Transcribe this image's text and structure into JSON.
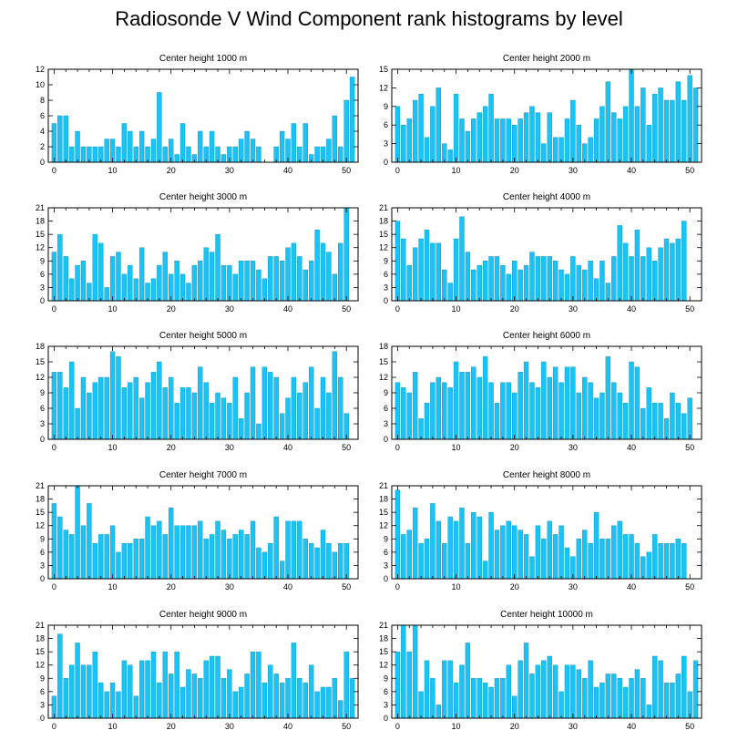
{
  "title": "Radiosonde V Wind Component rank histograms by level",
  "colors": {
    "bar": "#19C3F5",
    "bar_edge": "#0C8FB7",
    "axis": "#000000",
    "background": "#ffffff"
  },
  "chart_data": [
    {
      "type": "bar",
      "title": "Center height 1000 m",
      "x": [
        0,
        1,
        2,
        3,
        4,
        5,
        6,
        7,
        8,
        9,
        10,
        11,
        12,
        13,
        14,
        15,
        16,
        17,
        18,
        19,
        20,
        21,
        22,
        23,
        24,
        25,
        26,
        27,
        28,
        29,
        30,
        31,
        32,
        33,
        34,
        35,
        36,
        37,
        38,
        39,
        40,
        41,
        42,
        43,
        44,
        45,
        46,
        47,
        48,
        49,
        50,
        51
      ],
      "values": [
        5,
        6,
        6,
        2,
        4,
        2,
        2,
        2,
        2,
        3,
        3,
        2,
        5,
        4,
        2,
        4,
        2,
        3,
        9,
        2,
        3,
        1,
        5,
        2,
        1,
        4,
        2,
        4,
        2,
        1,
        2,
        2,
        3,
        4,
        3,
        2,
        0,
        0,
        2,
        4,
        3,
        5,
        2,
        5,
        1,
        2,
        2,
        3,
        6,
        2,
        8,
        11
      ],
      "xlim": [
        -1,
        52
      ],
      "ylim": [
        0,
        12
      ],
      "xticks": [
        0,
        10,
        20,
        30,
        40,
        50
      ],
      "yticks": [
        0,
        2,
        4,
        6,
        8,
        10,
        12
      ]
    },
    {
      "type": "bar",
      "title": "Center height 2000 m",
      "x": [
        0,
        1,
        2,
        3,
        4,
        5,
        6,
        7,
        8,
        9,
        10,
        11,
        12,
        13,
        14,
        15,
        16,
        17,
        18,
        19,
        20,
        21,
        22,
        23,
        24,
        25,
        26,
        27,
        28,
        29,
        30,
        31,
        32,
        33,
        34,
        35,
        36,
        37,
        38,
        39,
        40,
        41,
        42,
        43,
        44,
        45,
        46,
        47,
        48,
        49,
        50,
        51
      ],
      "values": [
        9,
        6,
        7,
        10,
        11,
        4,
        9,
        12,
        3,
        2,
        11,
        7,
        5,
        7,
        8,
        9,
        11,
        7,
        7,
        7,
        6,
        7,
        8,
        9,
        8,
        3,
        8,
        4,
        4,
        7,
        10,
        6,
        3,
        4,
        7,
        9,
        13,
        8,
        7,
        9,
        15,
        9,
        12,
        6,
        11,
        12,
        10,
        10,
        13,
        10,
        14,
        12
      ],
      "xlim": [
        -1,
        52
      ],
      "ylim": [
        0,
        15
      ],
      "xticks": [
        0,
        10,
        20,
        30,
        40,
        50
      ],
      "yticks": [
        0,
        3,
        6,
        9,
        12,
        15
      ]
    },
    {
      "type": "bar",
      "title": "Center height 3000 m",
      "x": [
        0,
        1,
        2,
        3,
        4,
        5,
        6,
        7,
        8,
        9,
        10,
        11,
        12,
        13,
        14,
        15,
        16,
        17,
        18,
        19,
        20,
        21,
        22,
        23,
        24,
        25,
        26,
        27,
        28,
        29,
        30,
        31,
        32,
        33,
        34,
        35,
        36,
        37,
        38,
        39,
        40,
        41,
        42,
        43,
        44,
        45,
        46,
        47,
        48,
        49,
        50,
        51
      ],
      "values": [
        11,
        15,
        10,
        5,
        8,
        9,
        4,
        15,
        13,
        3,
        10,
        11,
        6,
        8,
        5,
        12,
        4,
        5,
        8,
        11,
        6,
        9,
        6,
        4,
        8,
        9,
        12,
        11,
        15,
        8,
        8,
        6,
        9,
        9,
        9,
        7,
        5,
        10,
        10,
        9,
        12,
        13,
        10,
        7,
        9,
        16,
        13,
        11,
        6,
        13,
        21,
        0
      ],
      "xlim": [
        -1,
        52
      ],
      "ylim": [
        0,
        21
      ],
      "xticks": [
        0,
        10,
        20,
        30,
        40,
        50
      ],
      "yticks": [
        0,
        3,
        6,
        9,
        12,
        15,
        18,
        21
      ]
    },
    {
      "type": "bar",
      "title": "Center height 4000 m",
      "x": [
        0,
        1,
        2,
        3,
        4,
        5,
        6,
        7,
        8,
        9,
        10,
        11,
        12,
        13,
        14,
        15,
        16,
        17,
        18,
        19,
        20,
        21,
        22,
        23,
        24,
        25,
        26,
        27,
        28,
        29,
        30,
        31,
        32,
        33,
        34,
        35,
        36,
        37,
        38,
        39,
        40,
        41,
        42,
        43,
        44,
        45,
        46,
        47,
        48,
        49,
        50,
        51
      ],
      "values": [
        18,
        14,
        8,
        12,
        14,
        16,
        13,
        13,
        7,
        4,
        14,
        19,
        11,
        7,
        8,
        9,
        10,
        10,
        8,
        6,
        9,
        7,
        8,
        11,
        10,
        10,
        10,
        9,
        7,
        6,
        10,
        8,
        7,
        9,
        5,
        9,
        4,
        10,
        17,
        13,
        10,
        16,
        10,
        12,
        9,
        12,
        14,
        13,
        14,
        18,
        0,
        0
      ],
      "xlim": [
        -1,
        52
      ],
      "ylim": [
        0,
        21
      ],
      "xticks": [
        0,
        10,
        20,
        30,
        40,
        50
      ],
      "yticks": [
        0,
        3,
        6,
        9,
        12,
        15,
        18,
        21
      ]
    },
    {
      "type": "bar",
      "title": "Center height 5000 m",
      "x": [
        0,
        1,
        2,
        3,
        4,
        5,
        6,
        7,
        8,
        9,
        10,
        11,
        12,
        13,
        14,
        15,
        16,
        17,
        18,
        19,
        20,
        21,
        22,
        23,
        24,
        25,
        26,
        27,
        28,
        29,
        30,
        31,
        32,
        33,
        34,
        35,
        36,
        37,
        38,
        39,
        40,
        41,
        42,
        43,
        44,
        45,
        46,
        47,
        48,
        49,
        50,
        51
      ],
      "values": [
        13,
        13,
        10,
        15,
        6,
        12,
        9,
        11,
        12,
        12,
        17,
        16,
        10,
        11,
        12,
        8,
        11,
        13,
        15,
        10,
        12,
        7,
        10,
        10,
        9,
        14,
        11,
        7,
        9,
        8,
        7,
        12,
        4,
        9,
        14,
        3,
        14,
        13,
        12,
        5,
        8,
        12,
        9,
        11,
        14,
        6,
        12,
        9,
        17,
        12,
        5,
        0
      ],
      "xlim": [
        -1,
        52
      ],
      "ylim": [
        0,
        18
      ],
      "xticks": [
        0,
        10,
        20,
        30,
        40,
        50
      ],
      "yticks": [
        0,
        3,
        6,
        9,
        12,
        15,
        18
      ]
    },
    {
      "type": "bar",
      "title": "Center height 6000 m",
      "x": [
        0,
        1,
        2,
        3,
        4,
        5,
        6,
        7,
        8,
        9,
        10,
        11,
        12,
        13,
        14,
        15,
        16,
        17,
        18,
        19,
        20,
        21,
        22,
        23,
        24,
        25,
        26,
        27,
        28,
        29,
        30,
        31,
        32,
        33,
        34,
        35,
        36,
        37,
        38,
        39,
        40,
        41,
        42,
        43,
        44,
        45,
        46,
        47,
        48,
        49,
        50,
        51
      ],
      "values": [
        11,
        10,
        9,
        13,
        4,
        7,
        11,
        12,
        11,
        10,
        15,
        13,
        13,
        14,
        12,
        16,
        11,
        7,
        11,
        11,
        9,
        13,
        15,
        11,
        10,
        15,
        12,
        14,
        11,
        14,
        14,
        9,
        12,
        11,
        8,
        9,
        16,
        11,
        9,
        7,
        15,
        14,
        6,
        10,
        7,
        7,
        4,
        9,
        7,
        5,
        8,
        0
      ],
      "xlim": [
        -1,
        52
      ],
      "ylim": [
        0,
        18
      ],
      "xticks": [
        0,
        10,
        20,
        30,
        40,
        50
      ],
      "yticks": [
        0,
        3,
        6,
        9,
        12,
        15,
        18
      ]
    },
    {
      "type": "bar",
      "title": "Center height 7000 m",
      "x": [
        0,
        1,
        2,
        3,
        4,
        5,
        6,
        7,
        8,
        9,
        10,
        11,
        12,
        13,
        14,
        15,
        16,
        17,
        18,
        19,
        20,
        21,
        22,
        23,
        24,
        25,
        26,
        27,
        28,
        29,
        30,
        31,
        32,
        33,
        34,
        35,
        36,
        37,
        38,
        39,
        40,
        41,
        42,
        43,
        44,
        45,
        46,
        47,
        48,
        49,
        50,
        51
      ],
      "values": [
        17,
        14,
        11,
        10,
        21,
        12,
        17,
        8,
        10,
        10,
        12,
        6,
        8,
        8,
        9,
        9,
        14,
        12,
        13,
        10,
        16,
        12,
        12,
        12,
        12,
        13,
        9,
        10,
        13,
        11,
        9,
        10,
        11,
        10,
        13,
        7,
        6,
        8,
        14,
        4,
        13,
        13,
        13,
        9,
        8,
        7,
        11,
        8,
        6,
        8,
        8,
        0
      ],
      "xlim": [
        -1,
        52
      ],
      "ylim": [
        0,
        21
      ],
      "xticks": [
        0,
        10,
        20,
        30,
        40,
        50
      ],
      "yticks": [
        0,
        3,
        6,
        9,
        12,
        15,
        18,
        21
      ]
    },
    {
      "type": "bar",
      "title": "Center height 8000 m",
      "x": [
        0,
        1,
        2,
        3,
        4,
        5,
        6,
        7,
        8,
        9,
        10,
        11,
        12,
        13,
        14,
        15,
        16,
        17,
        18,
        19,
        20,
        21,
        22,
        23,
        24,
        25,
        26,
        27,
        28,
        29,
        30,
        31,
        32,
        33,
        34,
        35,
        36,
        37,
        38,
        39,
        40,
        41,
        42,
        43,
        44,
        45,
        46,
        47,
        48,
        49,
        50,
        51
      ],
      "values": [
        20,
        10,
        11,
        16,
        8,
        9,
        17,
        13,
        8,
        14,
        13,
        16,
        8,
        15,
        14,
        4,
        15,
        11,
        12,
        13,
        12,
        11,
        10,
        5,
        12,
        9,
        13,
        10,
        12,
        7,
        5,
        9,
        11,
        8,
        15,
        9,
        9,
        12,
        13,
        10,
        10,
        8,
        5,
        6,
        10,
        8,
        8,
        8,
        9,
        8,
        0,
        0
      ],
      "xlim": [
        -1,
        52
      ],
      "ylim": [
        0,
        21
      ],
      "xticks": [
        0,
        10,
        20,
        30,
        40,
        50
      ],
      "yticks": [
        0,
        3,
        6,
        9,
        12,
        15,
        18,
        21
      ]
    },
    {
      "type": "bar",
      "title": "Center height 9000 m",
      "x": [
        0,
        1,
        2,
        3,
        4,
        5,
        6,
        7,
        8,
        9,
        10,
        11,
        12,
        13,
        14,
        15,
        16,
        17,
        18,
        19,
        20,
        21,
        22,
        23,
        24,
        25,
        26,
        27,
        28,
        29,
        30,
        31,
        32,
        33,
        34,
        35,
        36,
        37,
        38,
        39,
        40,
        41,
        42,
        43,
        44,
        45,
        46,
        47,
        48,
        49,
        50,
        51
      ],
      "values": [
        5,
        19,
        9,
        12,
        17,
        12,
        12,
        15,
        8,
        6,
        8,
        6,
        13,
        12,
        5,
        13,
        13,
        15,
        8,
        15,
        10,
        15,
        7,
        11,
        10,
        9,
        13,
        14,
        14,
        9,
        11,
        6,
        7,
        10,
        15,
        15,
        8,
        12,
        10,
        8,
        9,
        17,
        9,
        8,
        12,
        6,
        7,
        7,
        9,
        4,
        15,
        9
      ],
      "xlim": [
        -1,
        52
      ],
      "ylim": [
        0,
        21
      ],
      "xticks": [
        0,
        10,
        20,
        30,
        40,
        50
      ],
      "yticks": [
        0,
        3,
        6,
        9,
        12,
        15,
        18,
        21
      ]
    },
    {
      "type": "bar",
      "title": "Center height 10000 m",
      "x": [
        0,
        1,
        2,
        3,
        4,
        5,
        6,
        7,
        8,
        9,
        10,
        11,
        12,
        13,
        14,
        15,
        16,
        17,
        18,
        19,
        20,
        21,
        22,
        23,
        24,
        25,
        26,
        27,
        28,
        29,
        30,
        31,
        32,
        33,
        34,
        35,
        36,
        37,
        38,
        39,
        40,
        41,
        42,
        43,
        44,
        45,
        46,
        47,
        48,
        49,
        50,
        51
      ],
      "values": [
        15,
        21,
        15,
        21,
        6,
        13,
        9,
        3,
        13,
        13,
        8,
        12,
        17,
        9,
        9,
        8,
        7,
        9,
        9,
        12,
        5,
        13,
        17,
        10,
        12,
        13,
        14,
        12,
        6,
        12,
        12,
        11,
        9,
        13,
        7,
        8,
        10,
        10,
        9,
        7,
        9,
        11,
        9,
        3,
        14,
        13,
        8,
        8,
        10,
        14,
        6,
        13
      ],
      "xlim": [
        -1,
        52
      ],
      "ylim": [
        0,
        21
      ],
      "xticks": [
        0,
        10,
        20,
        30,
        40,
        50
      ],
      "yticks": [
        0,
        3,
        6,
        9,
        12,
        15,
        18,
        21
      ]
    }
  ]
}
